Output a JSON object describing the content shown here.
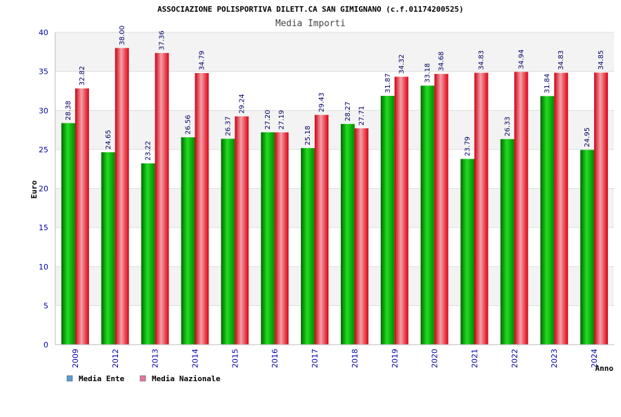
{
  "chart_data": {
    "type": "bar",
    "title": "ASSOCIAZIONE POLISPORTIVA DILETT.CA SAN GIMIGNANO (c.f.01174200525)",
    "subtitle": "Media Importi",
    "xlabel": "Anno",
    "ylabel": "Euro",
    "ylim": [
      0,
      40
    ],
    "yticks": [
      0,
      5,
      10,
      15,
      20,
      25,
      30,
      35,
      40
    ],
    "grid": true,
    "legend_position": "bottom-left",
    "categories": [
      "2009",
      "2012",
      "2013",
      "2014",
      "2015",
      "2016",
      "2017",
      "2018",
      "2019",
      "2020",
      "2021",
      "2022",
      "2023",
      "2024"
    ],
    "series": [
      {
        "name": "Media Ente",
        "color": "#00bb00",
        "legend_color": "#5b9bd5",
        "values": [
          28.38,
          24.65,
          23.22,
          26.56,
          26.37,
          27.2,
          25.18,
          28.27,
          31.87,
          33.18,
          23.79,
          26.33,
          31.84,
          24.95
        ],
        "labels": [
          "28.38",
          "24.65",
          "23.22",
          "26.56",
          "26.37",
          "27.20",
          "25.18",
          "28.27",
          "31.87",
          "33.18",
          "23.79",
          "26.33",
          "31.84",
          "24.95"
        ]
      },
      {
        "name": "Media Nazionale",
        "color": "#ee1122",
        "legend_color": "#e377a2",
        "values": [
          32.82,
          38.0,
          37.36,
          34.79,
          29.24,
          27.19,
          29.43,
          27.71,
          34.32,
          34.68,
          34.83,
          34.94,
          34.83,
          34.85
        ],
        "labels": [
          "32.82",
          "38.00",
          "37.36",
          "34.79",
          "29.24",
          "27.19",
          "29.43",
          "27.71",
          "34.32",
          "34.68",
          "34.83",
          "34.94",
          "34.83",
          "34.85"
        ]
      }
    ]
  }
}
